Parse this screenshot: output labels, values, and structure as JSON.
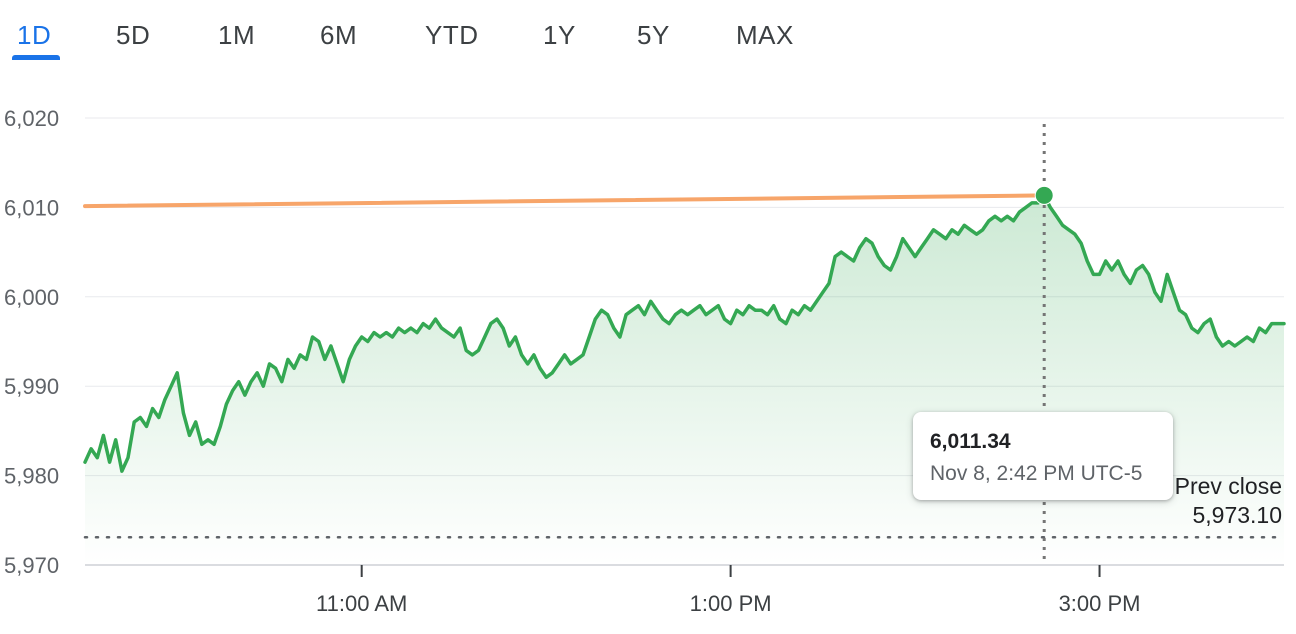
{
  "range_tabs": [
    {
      "label": "1D",
      "active": true
    },
    {
      "label": "5D",
      "active": false
    },
    {
      "label": "1M",
      "active": false
    },
    {
      "label": "6M",
      "active": false
    },
    {
      "label": "YTD",
      "active": false
    },
    {
      "label": "1Y",
      "active": false
    },
    {
      "label": "5Y",
      "active": false
    },
    {
      "label": "MAX",
      "active": false
    }
  ],
  "tooltip": {
    "value": "6,011.34",
    "time": "Nov 8, 2:42 PM UTC-5"
  },
  "prev_close": {
    "label": "Prev close",
    "value": "5,973.10"
  },
  "colors": {
    "accent": "#1a73e8",
    "line": "#34a853",
    "hover_line": "#f7a56a"
  },
  "chart_data": {
    "type": "line",
    "title": "",
    "xlabel": "",
    "ylabel": "",
    "ylim": [
      5970,
      6020
    ],
    "y_ticks": [
      6020,
      6010,
      6000,
      5990,
      5980,
      5970
    ],
    "y_tick_labels": [
      "6,020",
      "6,010",
      "6,000",
      "5,990",
      "5,980",
      "5,970"
    ],
    "x_range": [
      "9:30 AM",
      "4:00 PM"
    ],
    "x_ticks": [
      {
        "time": "11:00 AM",
        "label": "11:00 AM"
      },
      {
        "time": "1:00 PM",
        "label": "1:00 PM"
      },
      {
        "time": "3:00 PM",
        "label": "3:00 PM"
      }
    ],
    "prev_close": 5973.1,
    "hover": {
      "time": "2:42 PM",
      "value": 6011.34
    },
    "grid": true,
    "series": [
      {
        "points": [
          [
            "9:30 AM",
            5981.5
          ],
          [
            "9:32 AM",
            5983.0
          ],
          [
            "9:34 AM",
            5982.0
          ],
          [
            "9:36 AM",
            5984.5
          ],
          [
            "9:38 AM",
            5981.5
          ],
          [
            "9:40 AM",
            5984.0
          ],
          [
            "9:42 AM",
            5980.5
          ],
          [
            "9:44 AM",
            5982.0
          ],
          [
            "9:46 AM",
            5986.0
          ],
          [
            "9:48 AM",
            5986.5
          ],
          [
            "9:50 AM",
            5985.5
          ],
          [
            "9:52 AM",
            5987.5
          ],
          [
            "9:54 AM",
            5986.5
          ],
          [
            "9:56 AM",
            5988.5
          ],
          [
            "9:58 AM",
            5990.0
          ],
          [
            "10:00 AM",
            5991.5
          ],
          [
            "10:02 AM",
            5987.0
          ],
          [
            "10:04 AM",
            5984.5
          ],
          [
            "10:06 AM",
            5986.0
          ],
          [
            "10:08 AM",
            5983.5
          ],
          [
            "10:10 AM",
            5984.0
          ],
          [
            "10:12 AM",
            5983.5
          ],
          [
            "10:14 AM",
            5985.5
          ],
          [
            "10:16 AM",
            5988.0
          ],
          [
            "10:18 AM",
            5989.5
          ],
          [
            "10:20 AM",
            5990.5
          ],
          [
            "10:22 AM",
            5989.0
          ],
          [
            "10:24 AM",
            5990.5
          ],
          [
            "10:26 AM",
            5991.5
          ],
          [
            "10:28 AM",
            5990.0
          ],
          [
            "10:30 AM",
            5992.5
          ],
          [
            "10:32 AM",
            5992.0
          ],
          [
            "10:34 AM",
            5990.5
          ],
          [
            "10:36 AM",
            5993.0
          ],
          [
            "10:38 AM",
            5992.0
          ],
          [
            "10:40 AM",
            5993.5
          ],
          [
            "10:42 AM",
            5993.0
          ],
          [
            "10:44 AM",
            5995.5
          ],
          [
            "10:46 AM",
            5995.0
          ],
          [
            "10:48 AM",
            5993.0
          ],
          [
            "10:50 AM",
            5994.5
          ],
          [
            "10:52 AM",
            5992.5
          ],
          [
            "10:54 AM",
            5990.5
          ],
          [
            "10:56 AM",
            5993.0
          ],
          [
            "10:58 AM",
            5994.5
          ],
          [
            "11:00 AM",
            5995.5
          ],
          [
            "11:02 AM",
            5995.0
          ],
          [
            "11:04 AM",
            5996.0
          ],
          [
            "11:06 AM",
            5995.5
          ],
          [
            "11:08 AM",
            5996.0
          ],
          [
            "11:10 AM",
            5995.5
          ],
          [
            "11:12 AM",
            5996.5
          ],
          [
            "11:14 AM",
            5996.0
          ],
          [
            "11:16 AM",
            5996.5
          ],
          [
            "11:18 AM",
            5996.0
          ],
          [
            "11:20 AM",
            5997.0
          ],
          [
            "11:22 AM",
            5996.5
          ],
          [
            "11:24 AM",
            5997.5
          ],
          [
            "11:26 AM",
            5996.5
          ],
          [
            "11:28 AM",
            5996.0
          ],
          [
            "11:30 AM",
            5995.5
          ],
          [
            "11:32 AM",
            5996.5
          ],
          [
            "11:34 AM",
            5994.0
          ],
          [
            "11:36 AM",
            5993.5
          ],
          [
            "11:38 AM",
            5994.0
          ],
          [
            "11:40 AM",
            5995.5
          ],
          [
            "11:42 AM",
            5997.0
          ],
          [
            "11:44 AM",
            5997.5
          ],
          [
            "11:46 AM",
            5996.5
          ],
          [
            "11:48 AM",
            5994.5
          ],
          [
            "11:50 AM",
            5995.5
          ],
          [
            "11:52 AM",
            5993.5
          ],
          [
            "11:54 AM",
            5992.5
          ],
          [
            "11:56 AM",
            5993.5
          ],
          [
            "11:58 AM",
            5992.0
          ],
          [
            "12:00 PM",
            5991.0
          ],
          [
            "12:02 PM",
            5991.5
          ],
          [
            "12:04 PM",
            5992.5
          ],
          [
            "12:06 PM",
            5993.5
          ],
          [
            "12:08 PM",
            5992.5
          ],
          [
            "12:10 PM",
            5993.0
          ],
          [
            "12:12 PM",
            5993.5
          ],
          [
            "12:14 PM",
            5995.5
          ],
          [
            "12:16 PM",
            5997.5
          ],
          [
            "12:18 PM",
            5998.5
          ],
          [
            "12:20 PM",
            5998.0
          ],
          [
            "12:22 PM",
            5996.5
          ],
          [
            "12:24 PM",
            5995.5
          ],
          [
            "12:26 PM",
            5998.0
          ],
          [
            "12:28 PM",
            5998.5
          ],
          [
            "12:30 PM",
            5999.0
          ],
          [
            "12:32 PM",
            5998.0
          ],
          [
            "12:34 PM",
            5999.5
          ],
          [
            "12:36 PM",
            5998.5
          ],
          [
            "12:38 PM",
            5997.5
          ],
          [
            "12:40 PM",
            5997.0
          ],
          [
            "12:42 PM",
            5998.0
          ],
          [
            "12:44 PM",
            5998.5
          ],
          [
            "12:46 PM",
            5998.0
          ],
          [
            "12:48 PM",
            5998.5
          ],
          [
            "12:50 PM",
            5999.0
          ],
          [
            "12:52 PM",
            5998.0
          ],
          [
            "12:54 PM",
            5998.5
          ],
          [
            "12:56 PM",
            5999.0
          ],
          [
            "12:58 PM",
            5997.5
          ],
          [
            "1:00 PM",
            5997.0
          ],
          [
            "1:02 PM",
            5998.5
          ],
          [
            "1:04 PM",
            5998.0
          ],
          [
            "1:06 PM",
            5999.0
          ],
          [
            "1:08 PM",
            5998.5
          ],
          [
            "1:10 PM",
            5998.5
          ],
          [
            "1:12 PM",
            5998.0
          ],
          [
            "1:14 PM",
            5999.0
          ],
          [
            "1:16 PM",
            5997.5
          ],
          [
            "1:18 PM",
            5997.0
          ],
          [
            "1:20 PM",
            5998.5
          ],
          [
            "1:22 PM",
            5998.0
          ],
          [
            "1:24 PM",
            5999.0
          ],
          [
            "1:26 PM",
            5998.5
          ],
          [
            "1:28 PM",
            5999.5
          ],
          [
            "1:30 PM",
            6000.5
          ],
          [
            "1:32 PM",
            6001.5
          ],
          [
            "1:34 PM",
            6004.5
          ],
          [
            "1:36 PM",
            6005.0
          ],
          [
            "1:38 PM",
            6004.5
          ],
          [
            "1:40 PM",
            6004.0
          ],
          [
            "1:42 PM",
            6005.5
          ],
          [
            "1:44 PM",
            6006.5
          ],
          [
            "1:46 PM",
            6006.0
          ],
          [
            "1:48 PM",
            6004.5
          ],
          [
            "1:50 PM",
            6003.5
          ],
          [
            "1:52 PM",
            6003.0
          ],
          [
            "1:54 PM",
            6004.5
          ],
          [
            "1:56 PM",
            6006.5
          ],
          [
            "1:58 PM",
            6005.5
          ],
          [
            "2:00 PM",
            6004.5
          ],
          [
            "2:02 PM",
            6005.5
          ],
          [
            "2:04 PM",
            6006.5
          ],
          [
            "2:06 PM",
            6007.5
          ],
          [
            "2:08 PM",
            6007.0
          ],
          [
            "2:10 PM",
            6006.5
          ],
          [
            "2:12 PM",
            6007.5
          ],
          [
            "2:14 PM",
            6007.0
          ],
          [
            "2:16 PM",
            6008.0
          ],
          [
            "2:18 PM",
            6007.5
          ],
          [
            "2:20 PM",
            6007.0
          ],
          [
            "2:22 PM",
            6007.5
          ],
          [
            "2:24 PM",
            6008.5
          ],
          [
            "2:26 PM",
            6009.0
          ],
          [
            "2:28 PM",
            6008.5
          ],
          [
            "2:30 PM",
            6009.0
          ],
          [
            "2:32 PM",
            6008.5
          ],
          [
            "2:34 PM",
            6009.5
          ],
          [
            "2:36 PM",
            6010.0
          ],
          [
            "2:38 PM",
            6010.5
          ],
          [
            "2:40 PM",
            6010.5
          ],
          [
            "2:42 PM",
            6011.34
          ],
          [
            "2:44 PM",
            6010.0
          ],
          [
            "2:46 PM",
            6009.0
          ],
          [
            "2:48 PM",
            6008.0
          ],
          [
            "2:50 PM",
            6007.5
          ],
          [
            "2:52 PM",
            6007.0
          ],
          [
            "2:54 PM",
            6006.0
          ],
          [
            "2:56 PM",
            6004.0
          ],
          [
            "2:58 PM",
            6002.5
          ],
          [
            "3:00 PM",
            6002.5
          ],
          [
            "3:02 PM",
            6004.0
          ],
          [
            "3:04 PM",
            6003.0
          ],
          [
            "3:06 PM",
            6004.0
          ],
          [
            "3:08 PM",
            6002.5
          ],
          [
            "3:10 PM",
            6001.5
          ],
          [
            "3:12 PM",
            6003.0
          ],
          [
            "3:14 PM",
            6003.5
          ],
          [
            "3:16 PM",
            6002.5
          ],
          [
            "3:18 PM",
            6000.5
          ],
          [
            "3:20 PM",
            5999.5
          ],
          [
            "3:22 PM",
            6002.5
          ],
          [
            "3:24 PM",
            6000.5
          ],
          [
            "3:26 PM",
            5998.5
          ],
          [
            "3:28 PM",
            5998.0
          ],
          [
            "3:30 PM",
            5996.5
          ],
          [
            "3:32 PM",
            5996.0
          ],
          [
            "3:34 PM",
            5997.0
          ],
          [
            "3:36 PM",
            5997.5
          ],
          [
            "3:38 PM",
            5995.5
          ],
          [
            "3:40 PM",
            5994.5
          ],
          [
            "3:42 PM",
            5995.0
          ],
          [
            "3:44 PM",
            5994.5
          ],
          [
            "3:46 PM",
            5995.0
          ],
          [
            "3:48 PM",
            5995.5
          ],
          [
            "3:50 PM",
            5995.0
          ],
          [
            "3:52 PM",
            5996.5
          ],
          [
            "3:54 PM",
            5996.0
          ],
          [
            "3:56 PM",
            5997.0
          ],
          [
            "3:58 PM",
            5997.0
          ],
          [
            "4:00 PM",
            5997.0
          ]
        ]
      }
    ]
  }
}
